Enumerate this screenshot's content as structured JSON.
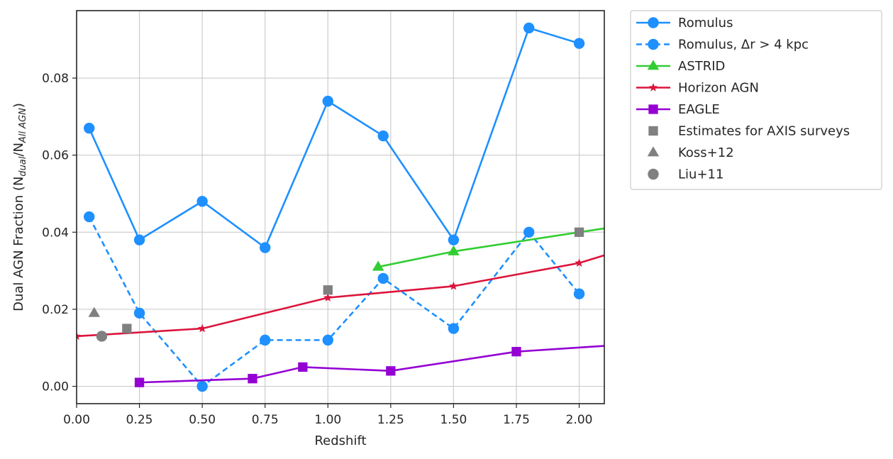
{
  "chart_data": {
    "type": "line",
    "xlabel": "Redshift",
    "ylabel": "Dual AGN Fraction (N",
    "ylabel_sub1": "dual",
    "ylabel_mid": "/N",
    "ylabel_sub2": "All AGN",
    "ylabel_end": ")",
    "xlim": [
      0.0,
      2.1
    ],
    "ylim": [
      -0.0045,
      0.0975
    ],
    "xticks": [
      0.0,
      0.25,
      0.5,
      0.75,
      1.0,
      1.25,
      1.5,
      1.75,
      2.0
    ],
    "xtick_labels": [
      "0.00",
      "0.25",
      "0.50",
      "0.75",
      "1.00",
      "1.25",
      "1.50",
      "1.75",
      "2.00"
    ],
    "yticks": [
      0.0,
      0.02,
      0.04,
      0.06,
      0.08
    ],
    "ytick_labels": [
      "0.00",
      "0.02",
      "0.04",
      "0.06",
      "0.08"
    ],
    "grid": true,
    "legend_position": "outside-right-top",
    "series": [
      {
        "name": "Romulus",
        "color": "#1e90ff",
        "line": "solid",
        "marker": "circle",
        "x": [
          0.05,
          0.25,
          0.5,
          0.75,
          1.0,
          1.22,
          1.5,
          1.8,
          2.0
        ],
        "y": [
          0.067,
          0.038,
          0.048,
          0.036,
          0.074,
          0.065,
          0.038,
          0.093,
          0.089
        ]
      },
      {
        "name": "Romulus, Δr > 4 kpc",
        "color": "#1e90ff",
        "line": "dashed",
        "marker": "circle",
        "x": [
          0.05,
          0.25,
          0.5,
          0.75,
          1.0,
          1.22,
          1.5,
          1.8,
          2.0
        ],
        "y": [
          0.044,
          0.019,
          0.0,
          0.012,
          0.012,
          0.028,
          0.015,
          0.04,
          0.024
        ]
      },
      {
        "name": "ASTRID",
        "color": "#32cd32",
        "line": "solid",
        "marker": "triangle",
        "x": [
          1.2,
          1.5,
          2.0,
          2.1
        ],
        "y": [
          0.031,
          0.035,
          0.04,
          0.041
        ],
        "marked": [
          true,
          true,
          false,
          false
        ]
      },
      {
        "name": "Horizon AGN",
        "color": "#dc143c",
        "line": "solid",
        "marker": "star",
        "x": [
          0.0,
          0.5,
          1.0,
          1.5,
          2.0,
          2.1
        ],
        "y": [
          0.013,
          0.015,
          0.023,
          0.026,
          0.032,
          0.034
        ],
        "marked": [
          true,
          true,
          true,
          true,
          true,
          false
        ]
      },
      {
        "name": "EAGLE",
        "color": "#9400d3",
        "line": "solid",
        "marker": "square",
        "x": [
          0.25,
          0.7,
          0.9,
          1.25,
          1.75,
          2.1
        ],
        "y": [
          0.001,
          0.002,
          0.005,
          0.004,
          0.009,
          0.0105
        ],
        "marked": [
          true,
          true,
          true,
          true,
          true,
          false
        ]
      },
      {
        "name": "Estimates for AXIS surveys",
        "color": "#808080",
        "line": "none",
        "marker": "square",
        "x": [
          0.2,
          1.0,
          2.0
        ],
        "y": [
          0.015,
          0.025,
          0.04
        ]
      },
      {
        "name": "Koss+12",
        "color": "#808080",
        "line": "none",
        "marker": "triangle",
        "x": [
          0.07
        ],
        "y": [
          0.019
        ]
      },
      {
        "name": "Liu+11",
        "color": "#808080",
        "line": "none",
        "marker": "circle",
        "x": [
          0.1
        ],
        "y": [
          0.013
        ]
      }
    ]
  }
}
